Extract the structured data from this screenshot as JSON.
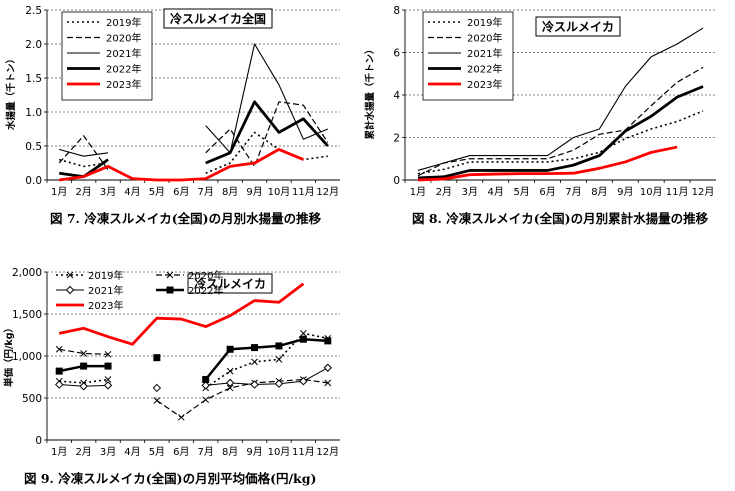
{
  "months": [
    "1月",
    "2月",
    "3月",
    "4月",
    "5月",
    "6月",
    "7月",
    "8月",
    "9月",
    "10月",
    "11月",
    "12月"
  ],
  "chart_data": [
    {
      "type": "line",
      "title": "冷スルメイカ全国",
      "ylabel": "水揚量（千トン）",
      "ylim": [
        0,
        2.5
      ],
      "yticks": [
        "0.0",
        "0.5",
        "1.0",
        "1.5",
        "2.0",
        "2.5"
      ],
      "caption": "図 7.  冷凍スルメイカ(全国)の月別水揚量の推移",
      "series": [
        {
          "name": "2019年",
          "style": "dotted",
          "color": "#000000",
          "values": [
            0.3,
            0.2,
            0.25,
            null,
            null,
            null,
            0.1,
            0.25,
            0.7,
            0.45,
            0.3,
            0.35
          ]
        },
        {
          "name": "2020年",
          "style": "dashed",
          "color": "#000000",
          "values": [
            0.25,
            0.65,
            0.15,
            null,
            null,
            null,
            0.4,
            0.75,
            0.2,
            1.15,
            1.1,
            0.55
          ]
        },
        {
          "name": "2021年",
          "style": "thin",
          "color": "#000000",
          "values": [
            0.45,
            0.35,
            0.4,
            null,
            null,
            null,
            0.8,
            0.4,
            2.0,
            1.4,
            0.6,
            0.75
          ]
        },
        {
          "name": "2022年",
          "style": "thick",
          "color": "#000000",
          "values": [
            0.1,
            0.05,
            0.3,
            null,
            null,
            null,
            0.25,
            0.4,
            1.15,
            0.7,
            0.9,
            0.5
          ]
        },
        {
          "name": "2023年",
          "style": "thick",
          "color": "#ff0000",
          "values": [
            0.0,
            0.05,
            0.2,
            0.02,
            0.0,
            0.0,
            0.02,
            0.2,
            0.25,
            0.45,
            0.3,
            null
          ]
        }
      ]
    },
    {
      "type": "line",
      "title": "冷スルメイカ",
      "ylabel": "累計水揚量（千トン）",
      "ylim": [
        0,
        8
      ],
      "yticks": [
        "0",
        "2",
        "4",
        "6",
        "8"
      ],
      "caption": "図 8.  冷凍スルメイカ(全国)の月別累計水揚量の推移",
      "series": [
        {
          "name": "2019年",
          "style": "dotted",
          "color": "#000000",
          "values": [
            0.3,
            0.5,
            0.85,
            0.85,
            0.85,
            0.85,
            1.0,
            1.3,
            1.95,
            2.4,
            2.75,
            3.25
          ]
        },
        {
          "name": "2020年",
          "style": "dashed",
          "color": "#000000",
          "values": [
            0.2,
            0.8,
            1.0,
            1.0,
            1.0,
            1.0,
            1.4,
            2.15,
            2.35,
            3.5,
            4.6,
            5.3
          ]
        },
        {
          "name": "2021年",
          "style": "thin",
          "color": "#000000",
          "values": [
            0.45,
            0.8,
            1.15,
            1.15,
            1.15,
            1.15,
            2.0,
            2.4,
            4.4,
            5.8,
            6.4,
            7.15
          ]
        },
        {
          "name": "2022年",
          "style": "thick",
          "color": "#000000",
          "values": [
            0.1,
            0.15,
            0.45,
            0.45,
            0.45,
            0.45,
            0.7,
            1.15,
            2.3,
            3.0,
            3.9,
            4.4
          ]
        },
        {
          "name": "2023年",
          "style": "thick",
          "color": "#ff0000",
          "values": [
            0.0,
            0.05,
            0.25,
            0.28,
            0.3,
            0.3,
            0.32,
            0.55,
            0.85,
            1.3,
            1.55,
            null
          ]
        }
      ]
    },
    {
      "type": "line",
      "title": "冷スルメイカ",
      "ylabel": "単価（円/kg）",
      "ylim": [
        0,
        2000
      ],
      "yticks": [
        "0",
        "500",
        "1,000",
        "1,500",
        "2,000"
      ],
      "caption": "図 9.  冷凍スルメイカ(全国)の月別平均価格(円/kg)",
      "series": [
        {
          "name": "2019年",
          "style": "dotted-x",
          "color": "#000000",
          "values": [
            700,
            680,
            720,
            null,
            null,
            null,
            620,
            820,
            930,
            960,
            1270,
            1210
          ]
        },
        {
          "name": "2020年",
          "style": "dashed-x",
          "color": "#000000",
          "values": [
            1080,
            1030,
            1020,
            null,
            470,
            270,
            480,
            620,
            680,
            700,
            720,
            680
          ]
        },
        {
          "name": "2021年",
          "style": "thin-diamond",
          "color": "#000000",
          "values": [
            660,
            640,
            650,
            null,
            620,
            null,
            650,
            680,
            660,
            670,
            700,
            860
          ]
        },
        {
          "name": "2022年",
          "style": "thick-square",
          "color": "#000000",
          "values": [
            820,
            880,
            880,
            null,
            980,
            null,
            720,
            1080,
            1100,
            1120,
            1200,
            1180
          ]
        },
        {
          "name": "2023年",
          "style": "thick",
          "color": "#ff0000",
          "values": [
            1270,
            1330,
            1230,
            1140,
            1450,
            1440,
            1350,
            1480,
            1660,
            1640,
            1860,
            null
          ]
        }
      ]
    }
  ]
}
